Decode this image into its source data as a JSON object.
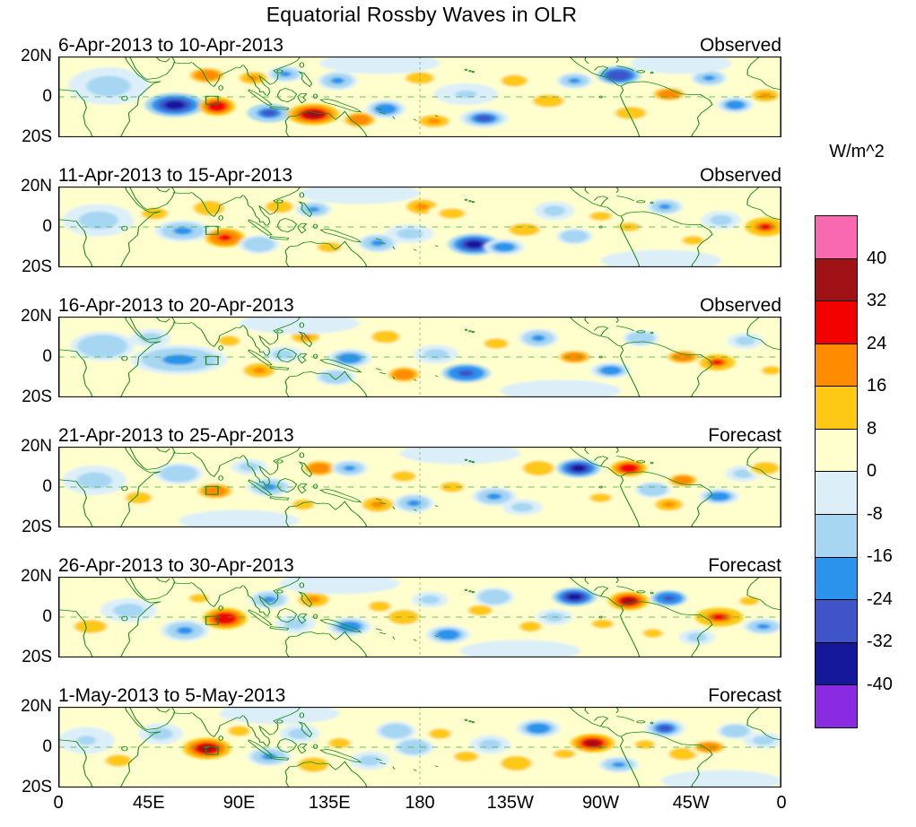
{
  "chart_data": {
    "type": "heatmap",
    "title": "Equatorial Rossby Waves in OLR",
    "units_label": "W/m^2",
    "x_ticks": [
      "0",
      "45E",
      "90E",
      "135E",
      "180",
      "135W",
      "90W",
      "45W",
      "0"
    ],
    "y_ticks": [
      "20N",
      "0",
      "20S"
    ],
    "lon_range": [
      0,
      360
    ],
    "lat_range": [
      -30,
      30
    ],
    "base_fill": "#FFFFCE",
    "map_overlays": {
      "equator_dashed": true,
      "dateline_dashed": true,
      "reference_box_lon": [
        73.5,
        79.5
      ],
      "reference_box_lat": [
        -5.5,
        0.5
      ],
      "coastline_color": "#1b8a1b"
    },
    "colorbar": {
      "levels": [
        -40,
        -32,
        -24,
        -16,
        -8,
        0,
        8,
        16,
        24,
        32,
        40
      ],
      "colors_top_to_bottom": [
        "#F869B2",
        "#A01115",
        "#F30000",
        "#FF8C00",
        "#FFC814",
        "#FFFFCE",
        "#DCEFF9",
        "#A6D6F2",
        "#2B93EC",
        "#3E54C8",
        "#16189B",
        "#8A2BE2"
      ],
      "tick_labels": [
        "40",
        "32",
        "24",
        "16",
        "8",
        "0",
        "-8",
        "-16",
        "-24",
        "-32",
        "-40"
      ]
    },
    "anomaly_format": [
      "lon_deg_east",
      "lat_deg",
      "rx_deg",
      "ry_deg",
      "peak_w_per_m2"
    ],
    "panels": [
      {
        "date_range": "6-Apr-2013 to 10-Apr-2013",
        "kind": "Observed",
        "anomalies": [
          [
            25,
            8,
            20,
            14,
            -10
          ],
          [
            74,
            16,
            11,
            7,
            22
          ],
          [
            58,
            -6,
            15,
            9,
            -38
          ],
          [
            79,
            -7,
            9,
            7,
            30
          ],
          [
            97,
            14,
            9,
            6,
            18
          ],
          [
            105,
            -12,
            11,
            7,
            -26
          ],
          [
            113,
            17,
            9,
            6,
            -18
          ],
          [
            127,
            -13,
            13,
            8,
            36
          ],
          [
            139,
            12,
            10,
            7,
            -16
          ],
          [
            150,
            -17,
            10,
            7,
            20
          ],
          [
            163,
            -9,
            10,
            7,
            -22
          ],
          [
            180,
            14,
            13,
            8,
            12
          ],
          [
            187,
            -18,
            10,
            6,
            18
          ],
          [
            203,
            2,
            16,
            8,
            -8
          ],
          [
            212,
            -16,
            12,
            7,
            -24
          ],
          [
            227,
            12,
            12,
            8,
            12
          ],
          [
            244,
            -3,
            10,
            6,
            16
          ],
          [
            257,
            12,
            9,
            6,
            -16
          ],
          [
            279,
            16,
            11,
            7,
            -30
          ],
          [
            285,
            -12,
            10,
            6,
            14
          ],
          [
            304,
            2,
            10,
            6,
            20
          ],
          [
            324,
            14,
            9,
            6,
            -18
          ],
          [
            337,
            -6,
            9,
            6,
            -20
          ],
          [
            352,
            1,
            9,
            6,
            18
          ],
          [
            160,
            25,
            30,
            8,
            -6
          ],
          [
            310,
            25,
            25,
            8,
            -6
          ]
        ]
      },
      {
        "date_range": "11-Apr-2013 to 15-Apr-2013",
        "kind": "Observed",
        "anomalies": [
          [
            20,
            5,
            18,
            12,
            -12
          ],
          [
            48,
            10,
            12,
            8,
            10
          ],
          [
            62,
            -3,
            14,
            8,
            -16
          ],
          [
            83,
            -8,
            10,
            7,
            28
          ],
          [
            75,
            14,
            10,
            7,
            14
          ],
          [
            110,
            15,
            9,
            6,
            16
          ],
          [
            100,
            -13,
            10,
            7,
            -14
          ],
          [
            127,
            13,
            9,
            6,
            -16
          ],
          [
            135,
            -15,
            11,
            7,
            12
          ],
          [
            159,
            -12,
            10,
            7,
            -18
          ],
          [
            181,
            15,
            10,
            7,
            18
          ],
          [
            175,
            -5,
            12,
            7,
            -10
          ],
          [
            207,
            -13,
            13,
            8,
            -36
          ],
          [
            222,
            -15,
            10,
            6,
            -20
          ],
          [
            196,
            10,
            12,
            7,
            10
          ],
          [
            232,
            -2,
            10,
            6,
            14
          ],
          [
            247,
            12,
            10,
            7,
            -10
          ],
          [
            257,
            -7,
            9,
            6,
            -14
          ],
          [
            270,
            8,
            10,
            6,
            10
          ],
          [
            284,
            0,
            10,
            6,
            12
          ],
          [
            302,
            15,
            9,
            6,
            -16
          ],
          [
            316,
            -10,
            10,
            6,
            10
          ],
          [
            330,
            5,
            10,
            7,
            -12
          ],
          [
            352,
            0,
            10,
            7,
            26
          ],
          [
            150,
            25,
            30,
            8,
            -6
          ],
          [
            300,
            -25,
            30,
            8,
            -6
          ]
        ]
      },
      {
        "date_range": "16-Apr-2013 to 20-Apr-2013",
        "kind": "Observed",
        "anomalies": [
          [
            22,
            8,
            16,
            11,
            -14
          ],
          [
            60,
            -2,
            24,
            11,
            -16
          ],
          [
            46,
            14,
            10,
            7,
            -10
          ],
          [
            85,
            12,
            10,
            7,
            10
          ],
          [
            100,
            -10,
            10,
            7,
            18
          ],
          [
            123,
            15,
            9,
            6,
            18
          ],
          [
            112,
            2,
            10,
            6,
            -10
          ],
          [
            145,
            -1,
            11,
            7,
            -20
          ],
          [
            138,
            -15,
            10,
            6,
            -14
          ],
          [
            163,
            15,
            9,
            6,
            16
          ],
          [
            172,
            -13,
            10,
            7,
            20
          ],
          [
            188,
            2,
            11,
            7,
            -10
          ],
          [
            203,
            -12,
            12,
            7,
            -28
          ],
          [
            218,
            10,
            11,
            7,
            10
          ],
          [
            239,
            14,
            10,
            7,
            -18
          ],
          [
            257,
            0,
            10,
            6,
            20
          ],
          [
            275,
            -10,
            10,
            6,
            -22
          ],
          [
            290,
            14,
            9,
            6,
            -14
          ],
          [
            311,
            0,
            10,
            6,
            22
          ],
          [
            328,
            -4,
            9,
            6,
            26
          ],
          [
            342,
            12,
            9,
            6,
            -12
          ],
          [
            355,
            -10,
            9,
            6,
            12
          ],
          [
            120,
            25,
            30,
            8,
            -6
          ],
          [
            250,
            -25,
            30,
            8,
            -6
          ]
        ]
      },
      {
        "date_range": "21-Apr-2013 to 25-Apr-2013",
        "kind": "Forecast",
        "anomalies": [
          [
            18,
            5,
            16,
            11,
            -10
          ],
          [
            40,
            -8,
            12,
            8,
            10
          ],
          [
            60,
            10,
            12,
            8,
            -14
          ],
          [
            78,
            -3,
            11,
            7,
            20
          ],
          [
            105,
            0,
            11,
            7,
            -18
          ],
          [
            95,
            15,
            9,
            6,
            -12
          ],
          [
            130,
            14,
            10,
            7,
            22
          ],
          [
            122,
            -13,
            10,
            7,
            12
          ],
          [
            145,
            14,
            9,
            6,
            -16
          ],
          [
            159,
            -13,
            10,
            7,
            18
          ],
          [
            177,
            -12,
            10,
            7,
            -16
          ],
          [
            172,
            8,
            11,
            7,
            10
          ],
          [
            196,
            0,
            11,
            7,
            12
          ],
          [
            217,
            -7,
            11,
            7,
            -18
          ],
          [
            239,
            14,
            10,
            7,
            16
          ],
          [
            231,
            -15,
            10,
            6,
            -12
          ],
          [
            259,
            14,
            11,
            7,
            -38
          ],
          [
            284,
            14,
            9,
            6,
            30
          ],
          [
            270,
            -8,
            10,
            6,
            10
          ],
          [
            296,
            -2,
            9,
            6,
            -14
          ],
          [
            304,
            -13,
            9,
            6,
            18
          ],
          [
            311,
            5,
            9,
            6,
            22
          ],
          [
            329,
            -7,
            10,
            6,
            -20
          ],
          [
            341,
            10,
            9,
            6,
            -12
          ],
          [
            352,
            14,
            9,
            6,
            16
          ],
          [
            200,
            25,
            30,
            8,
            -6
          ],
          [
            90,
            -25,
            30,
            8,
            -6
          ]
        ]
      },
      {
        "date_range": "26-Apr-2013 to 30-Apr-2013",
        "kind": "Forecast",
        "anomalies": [
          [
            16,
            -7,
            15,
            9,
            10
          ],
          [
            35,
            5,
            14,
            9,
            -10
          ],
          [
            63,
            -10,
            12,
            8,
            -18
          ],
          [
            83,
            -1,
            11,
            8,
            30
          ],
          [
            70,
            14,
            9,
            6,
            10
          ],
          [
            105,
            13,
            10,
            7,
            -16
          ],
          [
            127,
            13,
            10,
            7,
            18
          ],
          [
            118,
            -5,
            10,
            7,
            -12
          ],
          [
            145,
            -7,
            11,
            7,
            -22
          ],
          [
            160,
            8,
            10,
            7,
            10
          ],
          [
            172,
            0,
            10,
            7,
            16
          ],
          [
            194,
            -13,
            11,
            7,
            -20
          ],
          [
            185,
            13,
            9,
            6,
            -10
          ],
          [
            210,
            5,
            11,
            7,
            10
          ],
          [
            217,
            15,
            10,
            7,
            -14
          ],
          [
            235,
            -7,
            10,
            7,
            12
          ],
          [
            247,
            0,
            9,
            6,
            -10
          ],
          [
            257,
            15,
            11,
            7,
            -36
          ],
          [
            284,
            12,
            10,
            7,
            34
          ],
          [
            271,
            -5,
            10,
            6,
            10
          ],
          [
            304,
            14,
            9,
            6,
            -28
          ],
          [
            296,
            -12,
            9,
            6,
            12
          ],
          [
            329,
            0,
            12,
            7,
            26
          ],
          [
            318,
            -15,
            9,
            6,
            -12
          ],
          [
            351,
            -7,
            10,
            6,
            -16
          ],
          [
            344,
            12,
            9,
            6,
            10
          ],
          [
            140,
            25,
            30,
            8,
            -6
          ],
          [
            230,
            -25,
            30,
            8,
            -6
          ]
        ]
      },
      {
        "date_range": "1-May-2013 to 5-May-2013",
        "kind": "Forecast",
        "anomalies": [
          [
            14,
            5,
            14,
            10,
            -8
          ],
          [
            30,
            -10,
            12,
            8,
            10
          ],
          [
            51,
            10,
            11,
            8,
            -12
          ],
          [
            74,
            -1,
            12,
            8,
            34
          ],
          [
            90,
            12,
            10,
            7,
            12
          ],
          [
            105,
            -7,
            11,
            7,
            -16
          ],
          [
            127,
            -13,
            10,
            7,
            16
          ],
          [
            120,
            10,
            10,
            7,
            -10
          ],
          [
            140,
            3,
            10,
            7,
            10
          ],
          [
            155,
            -10,
            10,
            7,
            -12
          ],
          [
            168,
            12,
            10,
            7,
            -14
          ],
          [
            177,
            0,
            10,
            7,
            -14
          ],
          [
            190,
            10,
            10,
            7,
            10
          ],
          [
            203,
            -7,
            11,
            7,
            12
          ],
          [
            215,
            2,
            10,
            7,
            -10
          ],
          [
            228,
            -12,
            10,
            7,
            14
          ],
          [
            239,
            14,
            11,
            7,
            -20
          ],
          [
            252,
            -5,
            10,
            6,
            10
          ],
          [
            266,
            3,
            11,
            7,
            36
          ],
          [
            279,
            -13,
            10,
            6,
            -18
          ],
          [
            302,
            14,
            10,
            7,
            -24
          ],
          [
            292,
            2,
            9,
            6,
            12
          ],
          [
            311,
            -5,
            9,
            6,
            14
          ],
          [
            324,
            0,
            10,
            6,
            20
          ],
          [
            337,
            12,
            9,
            6,
            -14
          ],
          [
            351,
            5,
            10,
            6,
            -12
          ],
          [
            110,
            25,
            30,
            8,
            -6
          ],
          [
            330,
            -25,
            30,
            8,
            -6
          ]
        ]
      }
    ]
  }
}
